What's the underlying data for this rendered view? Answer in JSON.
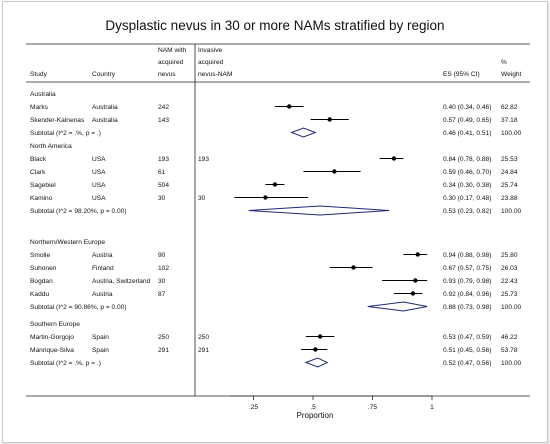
{
  "chart_data": {
    "type": "forest",
    "title": "Dysplastic nevus in 30 or more NAMs stratified by region",
    "xlabel": "Proportion",
    "x_ticks": [
      ".25",
      ".5",
      ".75",
      "1"
    ],
    "x_tick_values": [
      0.25,
      0.5,
      0.75,
      1.0
    ],
    "xlim": [
      0.0,
      1.0
    ],
    "columns": {
      "study": "Study",
      "country": "Country",
      "nam_with": [
        "NAM with",
        "acquired",
        "nevus"
      ],
      "invasive": [
        "Invasive",
        "acquired",
        "nevus-NAM"
      ],
      "es": "ES (95% CI)",
      "weight": [
        "%",
        "Weight"
      ]
    },
    "groups": [
      {
        "name": "Australia",
        "studies": [
          {
            "study": "Marks",
            "country": "Australia",
            "nam": "242",
            "inv": "",
            "es": 0.4,
            "lo": 0.34,
            "hi": 0.46,
            "es_label": "0.40 (0.34, 0.46)",
            "weight": "62.82"
          },
          {
            "study": "Skender-Kalnenas",
            "country": "Australia",
            "nam": "143",
            "inv": "",
            "es": 0.57,
            "lo": 0.49,
            "hi": 0.65,
            "es_label": "0.57 (0.49, 0.65)",
            "weight": "37.18"
          }
        ],
        "subtotal": {
          "label": "Subtotal  (I^2 = .%, p = .)",
          "es": 0.46,
          "lo": 0.41,
          "hi": 0.51,
          "es_label": "0.46 (0.41, 0.51)",
          "weight": "100.00"
        }
      },
      {
        "name": "North America",
        "studies": [
          {
            "study": "Black",
            "country": "USA",
            "nam": "193",
            "inv": "193",
            "es": 0.84,
            "lo": 0.78,
            "hi": 0.88,
            "es_label": "0.84 (0.78, 0.88)",
            "weight": "25.53"
          },
          {
            "study": "Clark",
            "country": "USA",
            "nam": "61",
            "inv": "",
            "es": 0.59,
            "lo": 0.46,
            "hi": 0.7,
            "es_label": "0.59 (0.46, 0.70)",
            "weight": "24.84"
          },
          {
            "study": "Sagebiel",
            "country": "USA",
            "nam": "504",
            "inv": "",
            "es": 0.34,
            "lo": 0.3,
            "hi": 0.38,
            "es_label": "0.34 (0.30, 0.38)",
            "weight": "25.74"
          },
          {
            "study": "Kamino",
            "country": "USA",
            "nam": "30",
            "inv": "30",
            "es": 0.3,
            "lo": 0.17,
            "hi": 0.48,
            "es_label": "0.30 (0.17, 0.48)",
            "weight": "23.88"
          }
        ],
        "subtotal": {
          "label": "Subtotal  (I^2 = 98.20%, p = 0.00)",
          "es": 0.53,
          "lo": 0.23,
          "hi": 0.82,
          "es_label": "0.53 (0.23, 0.82)",
          "weight": "100.00"
        }
      },
      {
        "name": "Northern/Western Europe",
        "studies": [
          {
            "study": "Smolle",
            "country": "Austria",
            "nam": "90",
            "inv": "",
            "es": 0.94,
            "lo": 0.88,
            "hi": 0.98,
            "es_label": "0.94 (0.88, 0.98)",
            "weight": "25.80"
          },
          {
            "study": "Suhonen",
            "country": "Finland",
            "nam": "102",
            "inv": "",
            "es": 0.67,
            "lo": 0.57,
            "hi": 0.75,
            "es_label": "0.67 (0.57, 0.75)",
            "weight": "26.03"
          },
          {
            "study": "Bogdan",
            "country": "Austria, Switzerland",
            "nam": "30",
            "inv": "",
            "es": 0.93,
            "lo": 0.79,
            "hi": 0.98,
            "es_label": "0.93 (0.79, 0.98)",
            "weight": "22.43"
          },
          {
            "study": "Kaddu",
            "country": "Austria",
            "nam": "87",
            "inv": "",
            "es": 0.92,
            "lo": 0.84,
            "hi": 0.96,
            "es_label": "0.92 (0.84, 0.96)",
            "weight": "25.73"
          }
        ],
        "subtotal": {
          "label": "Subtotal  (I^2 = 90.86%, p = 0.00)",
          "es": 0.88,
          "lo": 0.73,
          "hi": 0.98,
          "es_label": "0.88 (0.73, 0.98)",
          "weight": "100.00"
        }
      },
      {
        "name": "Southern Europe",
        "studies": [
          {
            "study": "Martin-Gorgojo",
            "country": "Spain",
            "nam": "250",
            "inv": "250",
            "es": 0.53,
            "lo": 0.47,
            "hi": 0.59,
            "es_label": "0.53 (0.47, 0.59)",
            "weight": "46.22"
          },
          {
            "study": "Manrique-Silva",
            "country": "Spain",
            "nam": "291",
            "inv": "291",
            "es": 0.51,
            "lo": 0.45,
            "hi": 0.56,
            "es_label": "0.51 (0.45, 0.56)",
            "weight": "53.78"
          }
        ],
        "subtotal": {
          "label": "Subtotal  (I^2 = .%, p = .)",
          "es": 0.52,
          "lo": 0.47,
          "hi": 0.56,
          "es_label": "0.52 (0.47, 0.56)",
          "weight": "100.00"
        }
      }
    ],
    "colors": {
      "diamond": "#1f2a7a",
      "marker": "#000000",
      "text": "#111111"
    },
    "grid": false
  }
}
